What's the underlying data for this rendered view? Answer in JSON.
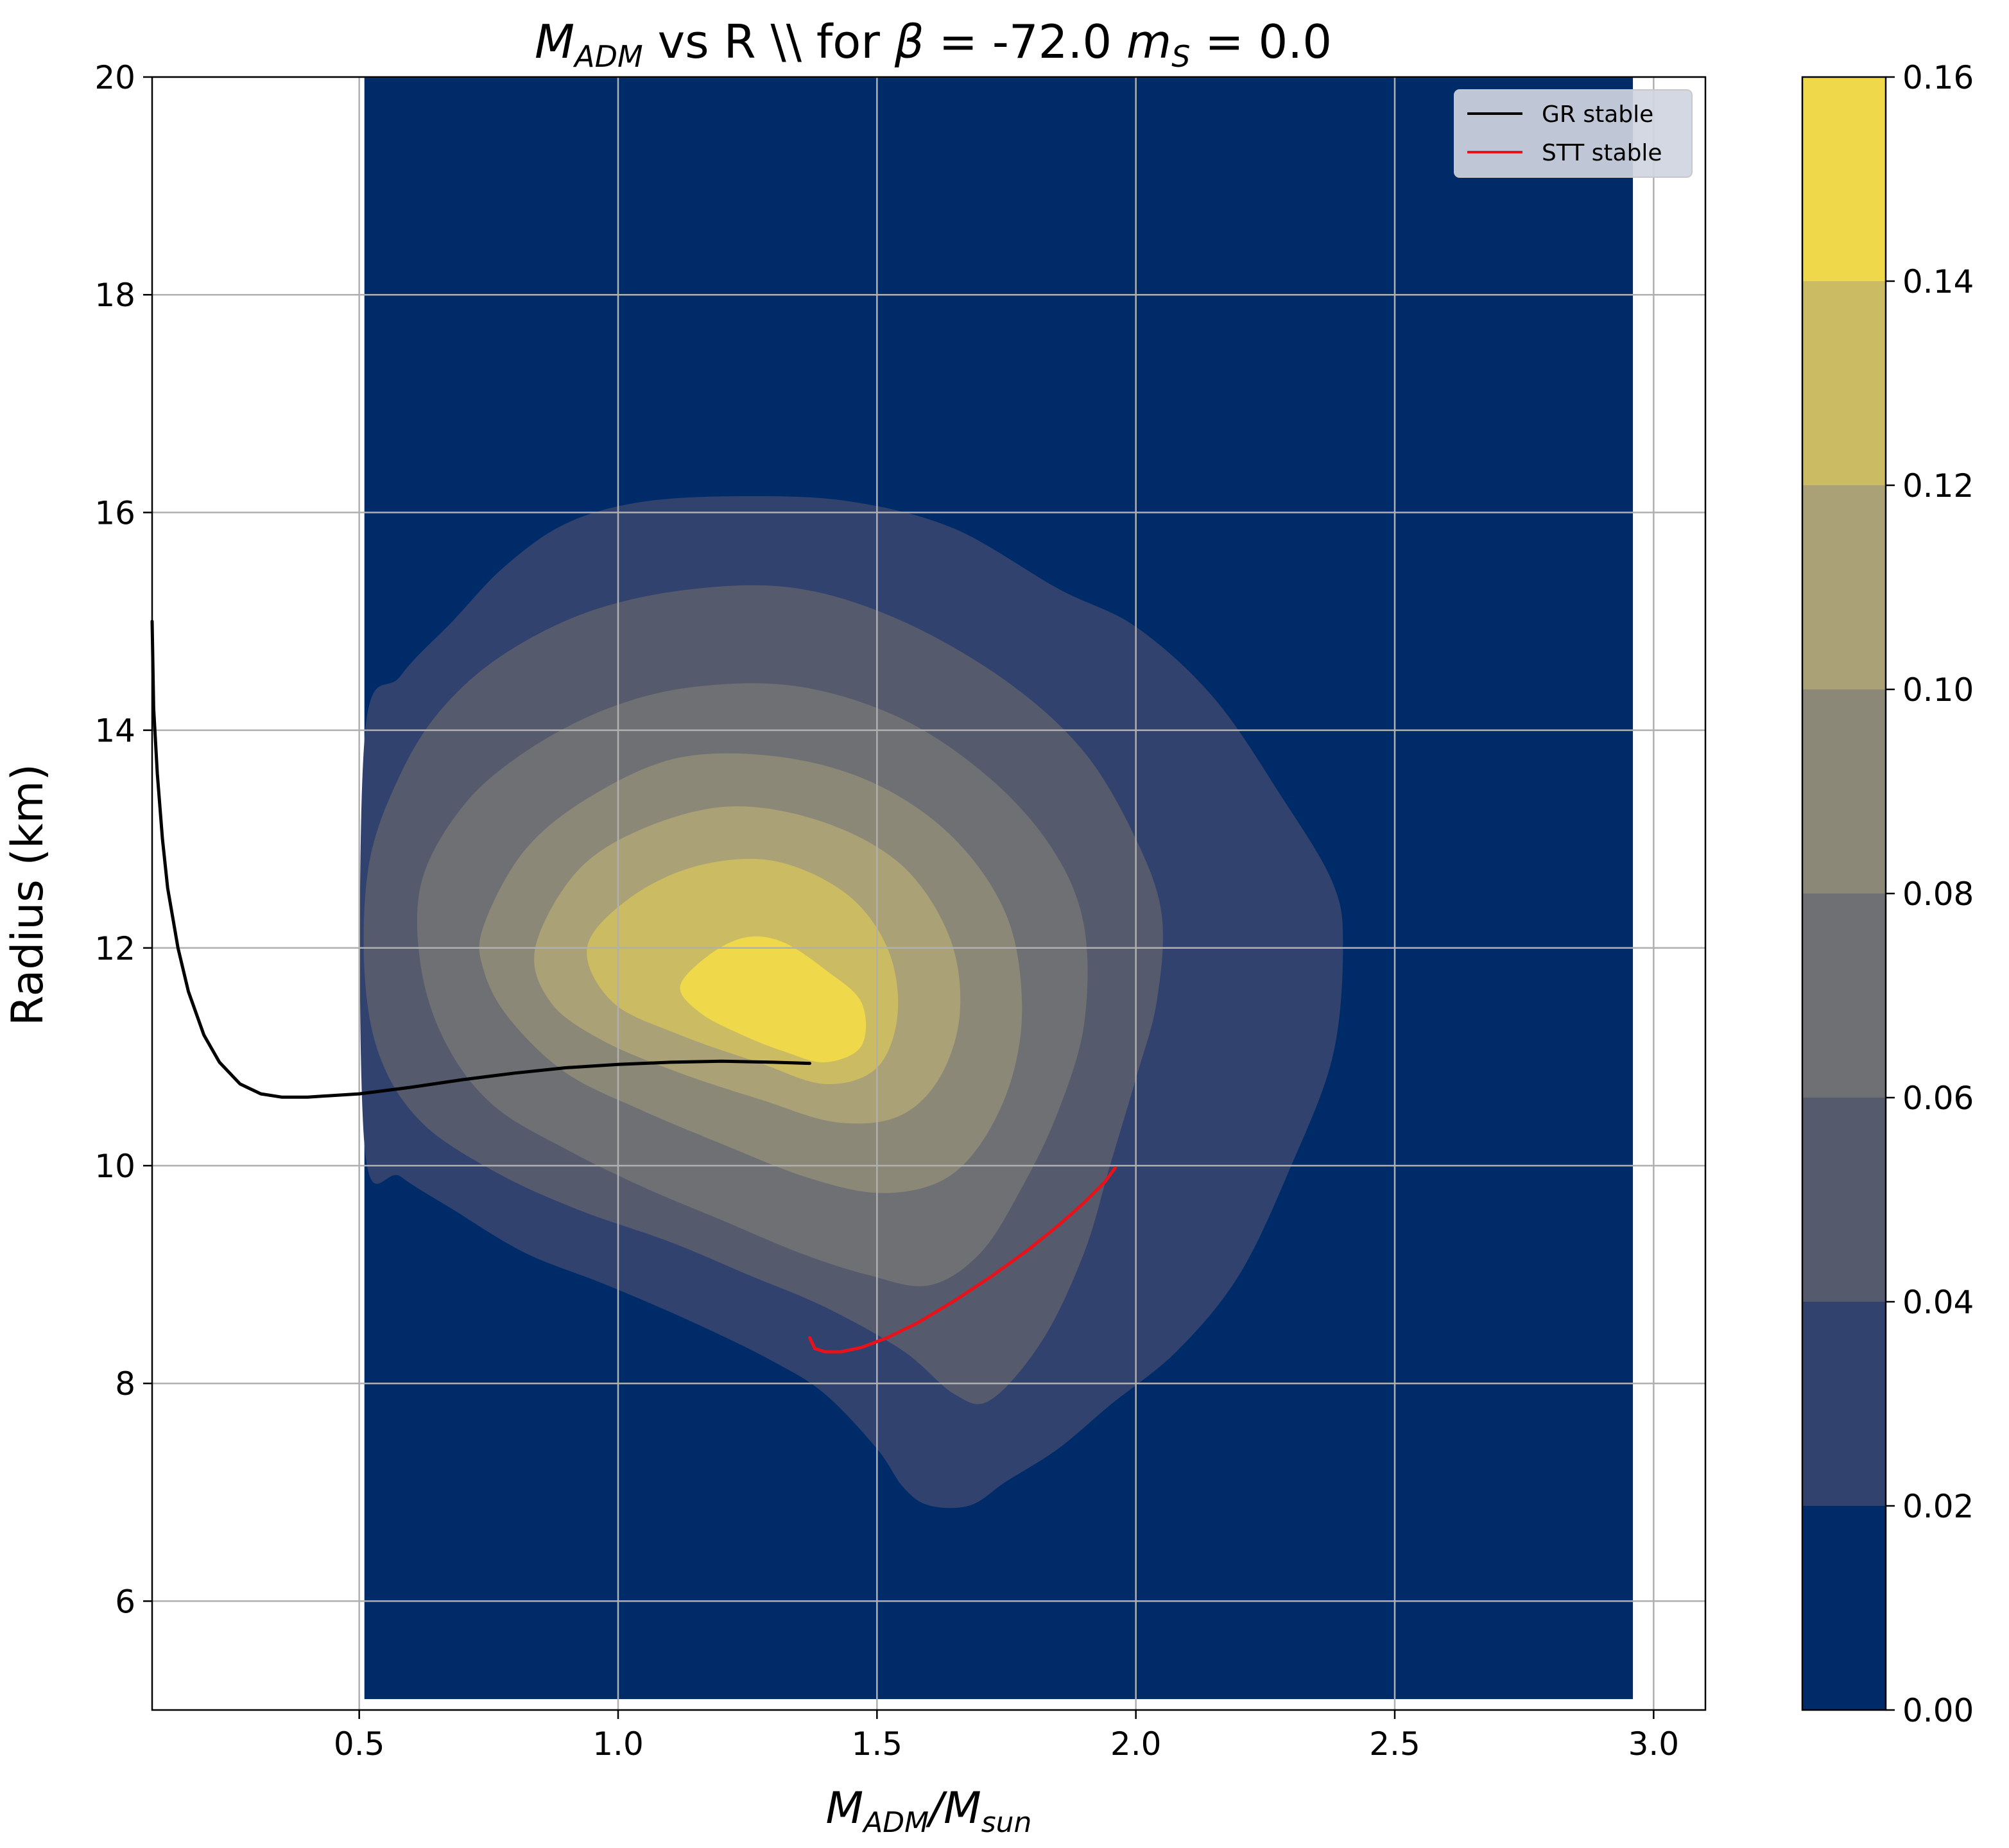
{
  "chart_data": {
    "type": "contour",
    "title": {
      "m_main": "M",
      "m_sub": "ADM",
      "mid": " vs R \\\\ for ",
      "beta": "β",
      "beta_eq": " = ",
      "beta_val": "-72.0",
      "ms_main": "m",
      "ms_sub": "S",
      "ms_eq": " = ",
      "ms_val": "0.0"
    },
    "xlabel": {
      "a_main": "M",
      "a_sub": "ADM",
      "slash": "/",
      "b_main": "M",
      "b_sub": "sun"
    },
    "ylabel": "Radius (km)",
    "xlim": [
      0.1,
      3.1
    ],
    "ylim": [
      5,
      20
    ],
    "x_ticks": [
      0.5,
      1.0,
      1.5,
      2.0,
      2.5,
      3.0
    ],
    "x_tick_labels": [
      "0.5",
      "1.0",
      "1.5",
      "2.0",
      "2.5",
      "3.0"
    ],
    "y_ticks": [
      6,
      8,
      10,
      12,
      14,
      16,
      18,
      20
    ],
    "y_tick_labels": [
      "6",
      "8",
      "10",
      "12",
      "14",
      "16",
      "18",
      "20"
    ],
    "grid": true,
    "density_domain": {
      "x": [
        0.51,
        2.96
      ],
      "y": [
        5.1,
        20
      ]
    },
    "colorbar": {
      "levels": [
        0.0,
        0.02,
        0.04,
        0.06,
        0.08,
        0.1,
        0.12,
        0.14,
        0.16
      ],
      "tick_labels": [
        "0.00",
        "0.02",
        "0.04",
        "0.06",
        "0.08",
        "0.10",
        "0.12",
        "0.14",
        "0.16"
      ],
      "colors": [
        "#002b69",
        "#31426e",
        "#555a6d",
        "#6f7074",
        "#8c8878",
        "#aba176",
        "#cbbb63",
        "#efd84a"
      ]
    },
    "contours": [
      {
        "level": 0.02,
        "points": [
          [
            0.51,
            13.9
          ],
          [
            0.58,
            14.5
          ],
          [
            0.68,
            15.0
          ],
          [
            0.78,
            15.5
          ],
          [
            0.9,
            15.9
          ],
          [
            1.05,
            16.1
          ],
          [
            1.25,
            16.15
          ],
          [
            1.45,
            16.1
          ],
          [
            1.65,
            15.85
          ],
          [
            1.85,
            15.3
          ],
          [
            2.0,
            14.95
          ],
          [
            2.15,
            14.3
          ],
          [
            2.28,
            13.4
          ],
          [
            2.38,
            12.6
          ],
          [
            2.4,
            12.0
          ],
          [
            2.38,
            11.0
          ],
          [
            2.3,
            10.0
          ],
          [
            2.2,
            9.0
          ],
          [
            2.08,
            8.3
          ],
          [
            1.95,
            7.8
          ],
          [
            1.85,
            7.4
          ],
          [
            1.75,
            7.1
          ],
          [
            1.68,
            6.88
          ],
          [
            1.6,
            6.88
          ],
          [
            1.55,
            7.05
          ],
          [
            1.5,
            7.4
          ],
          [
            1.4,
            7.9
          ],
          [
            1.3,
            8.2
          ],
          [
            1.15,
            8.55
          ],
          [
            0.98,
            8.9
          ],
          [
            0.82,
            9.2
          ],
          [
            0.68,
            9.6
          ],
          [
            0.58,
            9.9
          ],
          [
            0.51,
            10.2
          ]
        ]
      },
      {
        "level": 0.04,
        "points": [
          [
            0.52,
            12.8
          ],
          [
            0.58,
            13.6
          ],
          [
            0.66,
            14.2
          ],
          [
            0.78,
            14.7
          ],
          [
            0.95,
            15.1
          ],
          [
            1.15,
            15.3
          ],
          [
            1.35,
            15.3
          ],
          [
            1.55,
            15.0
          ],
          [
            1.75,
            14.45
          ],
          [
            1.9,
            13.8
          ],
          [
            2.0,
            13.0
          ],
          [
            2.05,
            12.3
          ],
          [
            2.04,
            11.5
          ],
          [
            2.0,
            10.8
          ],
          [
            1.95,
            10.0
          ],
          [
            1.9,
            9.2
          ],
          [
            1.82,
            8.4
          ],
          [
            1.72,
            7.85
          ],
          [
            1.65,
            7.9
          ],
          [
            1.55,
            8.3
          ],
          [
            1.4,
            8.7
          ],
          [
            1.25,
            9.0
          ],
          [
            1.1,
            9.3
          ],
          [
            0.92,
            9.6
          ],
          [
            0.76,
            9.95
          ],
          [
            0.62,
            10.4
          ],
          [
            0.54,
            11.0
          ],
          [
            0.51,
            11.8
          ]
        ]
      },
      {
        "level": 0.06,
        "points": [
          [
            0.62,
            12.6
          ],
          [
            0.7,
            13.3
          ],
          [
            0.82,
            13.8
          ],
          [
            0.98,
            14.2
          ],
          [
            1.15,
            14.4
          ],
          [
            1.35,
            14.4
          ],
          [
            1.55,
            14.1
          ],
          [
            1.72,
            13.55
          ],
          [
            1.84,
            12.9
          ],
          [
            1.9,
            12.2
          ],
          [
            1.9,
            11.3
          ],
          [
            1.85,
            10.5
          ],
          [
            1.78,
            9.8
          ],
          [
            1.7,
            9.2
          ],
          [
            1.6,
            8.9
          ],
          [
            1.48,
            9.0
          ],
          [
            1.35,
            9.2
          ],
          [
            1.2,
            9.5
          ],
          [
            1.05,
            9.8
          ],
          [
            0.9,
            10.15
          ],
          [
            0.76,
            10.55
          ],
          [
            0.67,
            11.1
          ],
          [
            0.62,
            11.8
          ]
        ]
      },
      {
        "level": 0.08,
        "points": [
          [
            0.74,
            12.2
          ],
          [
            0.82,
            12.9
          ],
          [
            0.95,
            13.4
          ],
          [
            1.12,
            13.75
          ],
          [
            1.32,
            13.75
          ],
          [
            1.5,
            13.5
          ],
          [
            1.65,
            13.0
          ],
          [
            1.75,
            12.3
          ],
          [
            1.78,
            11.5
          ],
          [
            1.76,
            10.8
          ],
          [
            1.7,
            10.2
          ],
          [
            1.62,
            9.85
          ],
          [
            1.5,
            9.75
          ],
          [
            1.36,
            9.9
          ],
          [
            1.2,
            10.2
          ],
          [
            1.05,
            10.5
          ],
          [
            0.9,
            10.85
          ],
          [
            0.79,
            11.35
          ],
          [
            0.74,
            11.8
          ]
        ]
      },
      {
        "level": 0.1,
        "points": [
          [
            0.84,
            12.0
          ],
          [
            0.92,
            12.7
          ],
          [
            1.05,
            13.1
          ],
          [
            1.22,
            13.3
          ],
          [
            1.4,
            13.15
          ],
          [
            1.55,
            12.75
          ],
          [
            1.64,
            12.1
          ],
          [
            1.66,
            11.4
          ],
          [
            1.62,
            10.8
          ],
          [
            1.54,
            10.45
          ],
          [
            1.42,
            10.4
          ],
          [
            1.28,
            10.6
          ],
          [
            1.12,
            10.85
          ],
          [
            0.97,
            11.15
          ],
          [
            0.87,
            11.5
          ]
        ]
      },
      {
        "level": 0.12,
        "points": [
          [
            0.94,
            12.0
          ],
          [
            1.02,
            12.45
          ],
          [
            1.15,
            12.75
          ],
          [
            1.3,
            12.8
          ],
          [
            1.44,
            12.5
          ],
          [
            1.52,
            12.0
          ],
          [
            1.54,
            11.4
          ],
          [
            1.5,
            10.9
          ],
          [
            1.4,
            10.75
          ],
          [
            1.27,
            10.95
          ],
          [
            1.12,
            11.2
          ],
          [
            0.99,
            11.5
          ]
        ]
      },
      {
        "level": 0.14,
        "points": [
          [
            1.12,
            11.65
          ],
          [
            1.18,
            11.95
          ],
          [
            1.25,
            12.1
          ],
          [
            1.32,
            12.05
          ],
          [
            1.4,
            11.8
          ],
          [
            1.47,
            11.5
          ],
          [
            1.47,
            11.1
          ],
          [
            1.4,
            10.95
          ],
          [
            1.32,
            11.05
          ],
          [
            1.24,
            11.2
          ],
          [
            1.16,
            11.4
          ]
        ]
      }
    ],
    "series": [
      {
        "name": "GR stable",
        "color": "#000000",
        "x": [
          0.1,
          0.103,
          0.11,
          0.12,
          0.13,
          0.15,
          0.17,
          0.2,
          0.23,
          0.27,
          0.31,
          0.35,
          0.4,
          0.5,
          0.6,
          0.7,
          0.8,
          0.9,
          1.0,
          1.1,
          1.2,
          1.3,
          1.37
        ],
        "y": [
          15.0,
          14.2,
          13.6,
          13.0,
          12.55,
          12.0,
          11.6,
          11.2,
          10.95,
          10.75,
          10.66,
          10.63,
          10.63,
          10.66,
          10.72,
          10.79,
          10.85,
          10.9,
          10.93,
          10.95,
          10.96,
          10.95,
          10.94
        ]
      },
      {
        "name": "STT stable",
        "color": "#e8121b",
        "x": [
          1.37,
          1.38,
          1.4,
          1.43,
          1.47,
          1.52,
          1.58,
          1.65,
          1.72,
          1.79,
          1.85,
          1.9,
          1.94,
          1.96
        ],
        "y": [
          8.42,
          8.32,
          8.29,
          8.29,
          8.33,
          8.42,
          8.56,
          8.76,
          8.98,
          9.22,
          9.45,
          9.66,
          9.85,
          9.98
        ]
      }
    ],
    "legend_position": "top-right"
  }
}
